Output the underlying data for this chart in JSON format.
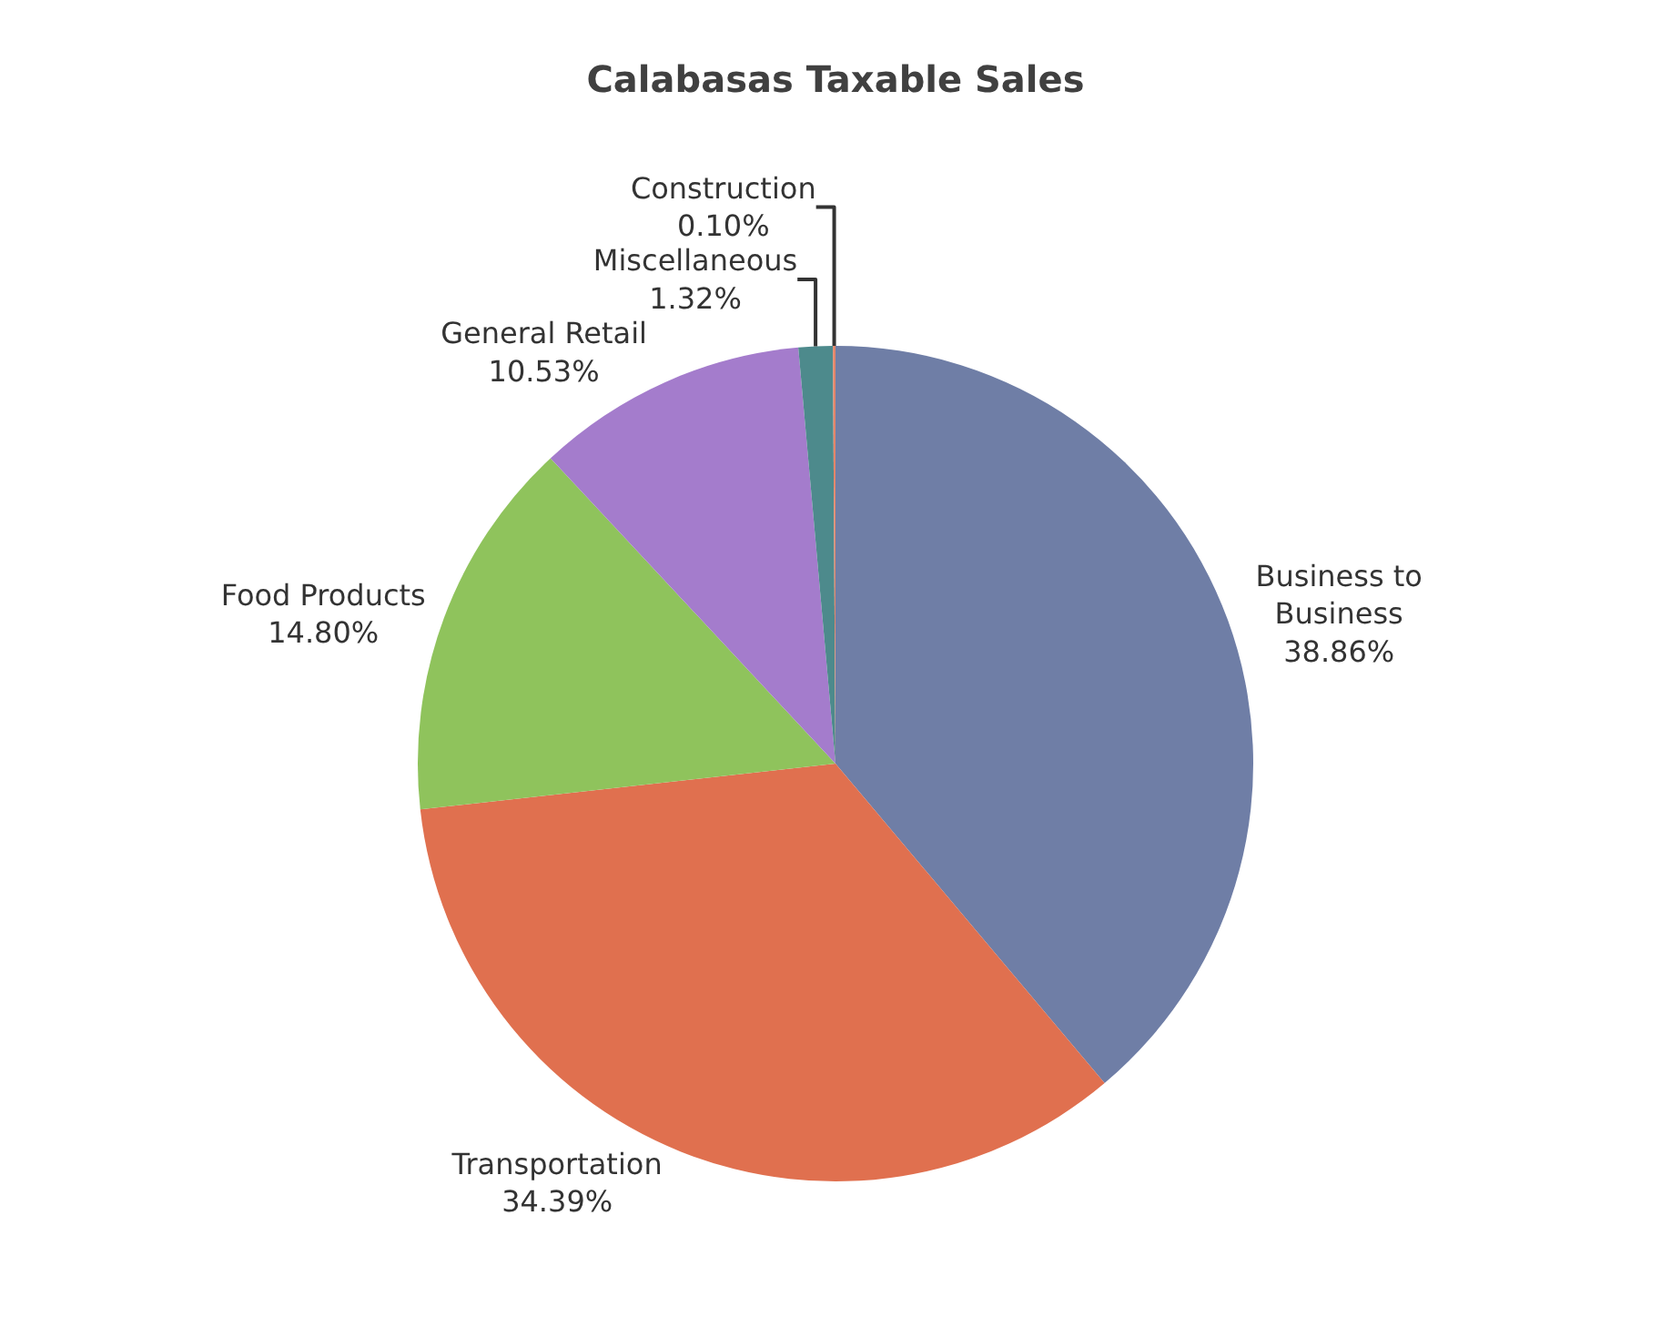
{
  "chart_data": {
    "type": "pie",
    "title": "Calabasas Taxable Sales",
    "categories": [
      "Business to Business",
      "Transportation",
      "Food Products",
      "General Retail",
      "Miscellaneous",
      "Construction"
    ],
    "values": [
      38.86,
      34.39,
      14.8,
      10.53,
      1.32,
      0.1
    ],
    "value_labels": [
      "38.86%",
      "34.39%",
      "14.80%",
      "10.53%",
      "1.32%",
      "0.10%"
    ],
    "colors": [
      "#6f7ea6",
      "#e0704f",
      "#8fc35c",
      "#a47ccc",
      "#4d8a8c",
      "#e4866a"
    ],
    "legend": false
  }
}
